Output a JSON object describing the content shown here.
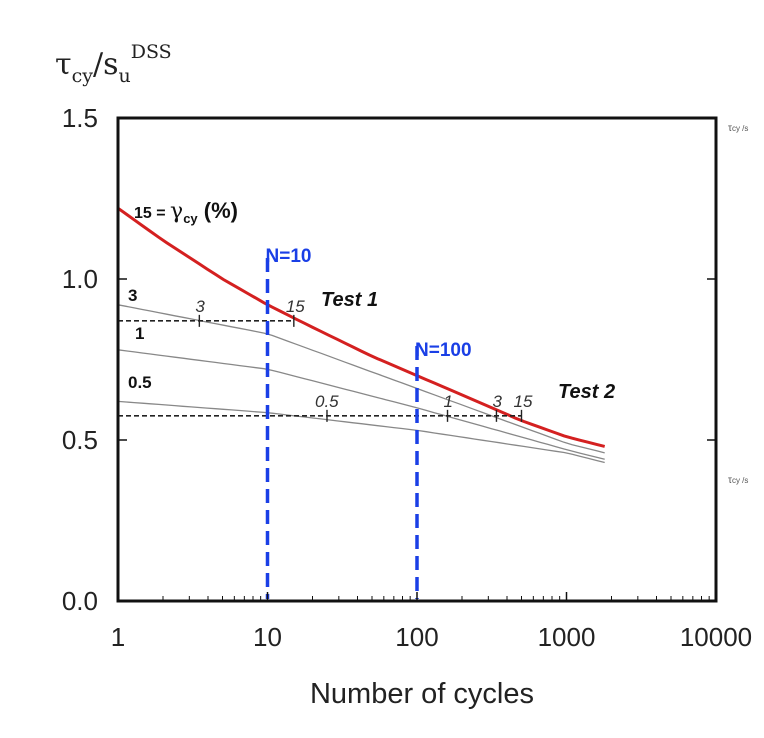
{
  "chart_data": {
    "type": "line",
    "x_scale": "log",
    "xlim": [
      1,
      10000
    ],
    "ylim": [
      0,
      1.5
    ],
    "xlabel": "Number of cycles",
    "ylabel": {
      "main": "τ",
      "sub1": "cy",
      "slash": "/s",
      "sub2": "u",
      "sup": "DSS"
    },
    "x_ticks": [
      "1",
      "10",
      "100",
      "1000",
      "10000"
    ],
    "x_tick_values": [
      1,
      10,
      100,
      1000,
      10000
    ],
    "y_ticks": [
      "0.0",
      "0.5",
      "1.0",
      "1.5"
    ],
    "y_tick_values": [
      0,
      0.5,
      1.0,
      1.5
    ],
    "grid": false,
    "series": [
      {
        "label": "0.5",
        "color": "#888888",
        "x": [
          1,
          10,
          100,
          1000,
          1800
        ],
        "y": [
          0.62,
          0.585,
          0.53,
          0.46,
          0.43
        ]
      },
      {
        "label": "1",
        "color": "#888888",
        "x": [
          1,
          10,
          100,
          1000,
          1800
        ],
        "y": [
          0.78,
          0.72,
          0.6,
          0.47,
          0.44
        ]
      },
      {
        "label": "3",
        "color": "#888888",
        "x": [
          1,
          10,
          100,
          1000,
          1800
        ],
        "y": [
          0.92,
          0.83,
          0.66,
          0.49,
          0.46
        ]
      },
      {
        "label": "15",
        "color": "#d42020",
        "x": [
          1,
          2,
          5,
          10,
          20,
          50,
          100,
          200,
          500,
          1000,
          1800
        ],
        "y": [
          1.22,
          1.12,
          1.0,
          0.92,
          0.85,
          0.76,
          0.7,
          0.64,
          0.56,
          0.51,
          0.48
        ]
      }
    ],
    "gamma_label": {
      "value": "15 = ",
      "symbol": "γ",
      "sub": "cy",
      "unit": " (%)"
    },
    "tests": [
      {
        "label": "Test 1",
        "y": 0.87,
        "x_end": 15,
        "points": [
          {
            "label": "3",
            "x": 3.5
          },
          {
            "label": "15",
            "x": 15
          }
        ]
      },
      {
        "label": "Test 2",
        "y": 0.575,
        "x_end": 500,
        "points": [
          {
            "label": "0.5",
            "x": 25
          },
          {
            "label": "1",
            "x": 160
          },
          {
            "label": "3",
            "x": 340
          },
          {
            "label": "15",
            "x": 500
          }
        ]
      }
    ],
    "verticals": [
      {
        "label": "N=10",
        "x": 10,
        "color": "#1a3fe6"
      },
      {
        "label": "N=100",
        "x": 100,
        "color": "#1a3fe6"
      }
    ],
    "side_labels": {
      "top": "τ",
      "top_rest": "cy /s",
      "bottom": "τ",
      "bottom_rest": "cy /s"
    }
  }
}
